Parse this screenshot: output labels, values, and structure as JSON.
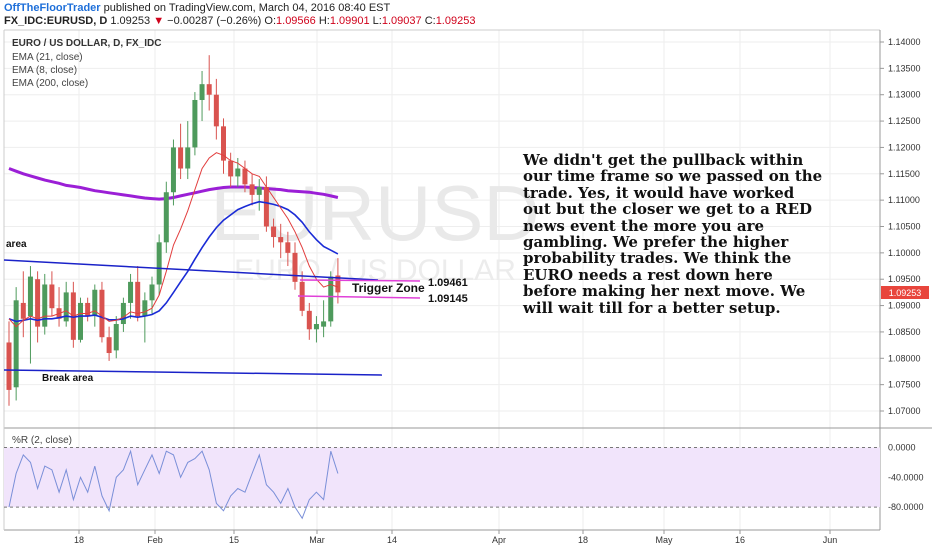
{
  "header": {
    "author": "OffTheFloorTrader",
    "published": "published on TradingView.com, March 04, 2016 08:40 EST",
    "symbol": "FX_IDC:EURUSD, D",
    "last": "1.09253",
    "change_arrow": "▼",
    "change": "−0.00287 (−0.26%)",
    "o_label": "O:",
    "o_val": "1.09566",
    "h_label": "H:",
    "h_val": "1.09901",
    "l_label": "L:",
    "l_val": "1.09037",
    "c_label": "C:",
    "c_val": "1.09253"
  },
  "legend": {
    "title": "EURO / US DOLLAR, D, FX_IDC",
    "ema21": "EMA (21, close)",
    "ema8": "EMA (8, close)",
    "ema200": "EMA (200, close)",
    "wr": "%R (2, close)"
  },
  "watermark": {
    "symbol": "EURUSD",
    "desc": "EURO / US DOLLAR"
  },
  "annotations": {
    "area": "area",
    "break_area": "Break area",
    "trigger_zone": "Trigger Zone",
    "level_high": "1.09461",
    "level_low": "1.09145"
  },
  "note": "We didn't get the pullback within our time frame so we passed on the trade. Yes, it would have worked out but the closer we get to a RED news event the more you are gambling. We prefer the higher probability trades. We think the EURO needs a rest down here before making her next move. We will wait till for a better setup.",
  "colors": {
    "up": "#4e9a5c",
    "down": "#d9534f",
    "ema21": "#1a2bd6",
    "ema8": "#e23d3d",
    "ema200": "#9b1fd6",
    "trendline": "#1a22c8",
    "trigger": "#e040d8",
    "wr": "#7a8fd8",
    "wr_band": "#f1e4fb",
    "last_tag": "#e8453c"
  },
  "chart_data": {
    "type": "candlestick",
    "price_axis": {
      "ticks": [
        "1.14000",
        "1.13500",
        "1.13000",
        "1.12500",
        "1.12000",
        "1.11500",
        "1.11000",
        "1.10500",
        "1.10000",
        "1.09500",
        "1.09000",
        "1.08500",
        "1.08000",
        "1.07500",
        "1.07000"
      ],
      "ylim": [
        1.0665,
        1.141
      ],
      "last_price": "1.09253"
    },
    "time_axis": {
      "ticks": [
        "18",
        "Feb",
        "15",
        "Mar",
        "14",
        "Apr",
        "18",
        "May",
        "16",
        "Jun"
      ]
    },
    "candles": [
      {
        "o": 1.083,
        "h": 1.087,
        "l": 1.071,
        "c": 1.074
      },
      {
        "o": 1.0745,
        "h": 1.0935,
        "l": 1.072,
        "c": 1.091
      },
      {
        "o": 1.0905,
        "h": 1.0965,
        "l": 1.084,
        "c": 1.0875
      },
      {
        "o": 1.088,
        "h": 1.0975,
        "l": 1.079,
        "c": 1.0955
      },
      {
        "o": 1.095,
        "h": 1.0965,
        "l": 1.083,
        "c": 1.086
      },
      {
        "o": 1.086,
        "h": 1.096,
        "l": 1.0845,
        "c": 1.094
      },
      {
        "o": 1.094,
        "h": 1.0965,
        "l": 1.088,
        "c": 1.0895
      },
      {
        "o": 1.0895,
        "h": 1.0935,
        "l": 1.086,
        "c": 1.0875
      },
      {
        "o": 1.087,
        "h": 1.0945,
        "l": 1.086,
        "c": 1.0925
      },
      {
        "o": 1.0925,
        "h": 1.0945,
        "l": 1.082,
        "c": 1.0835
      },
      {
        "o": 1.0835,
        "h": 1.0915,
        "l": 1.083,
        "c": 1.0905
      },
      {
        "o": 1.0905,
        "h": 1.0915,
        "l": 1.087,
        "c": 1.088
      },
      {
        "o": 1.088,
        "h": 1.094,
        "l": 1.086,
        "c": 1.093
      },
      {
        "o": 1.093,
        "h": 1.0945,
        "l": 1.083,
        "c": 1.084
      },
      {
        "o": 1.084,
        "h": 1.086,
        "l": 1.0795,
        "c": 1.081
      },
      {
        "o": 1.0815,
        "h": 1.088,
        "l": 1.08,
        "c": 1.0865
      },
      {
        "o": 1.0865,
        "h": 1.0915,
        "l": 1.085,
        "c": 1.0905
      },
      {
        "o": 1.0905,
        "h": 1.096,
        "l": 1.0875,
        "c": 1.0945
      },
      {
        "o": 1.0945,
        "h": 1.0975,
        "l": 1.087,
        "c": 1.088
      },
      {
        "o": 1.088,
        "h": 1.0925,
        "l": 1.083,
        "c": 1.091
      },
      {
        "o": 1.091,
        "h": 1.0955,
        "l": 1.0885,
        "c": 1.094
      },
      {
        "o": 1.094,
        "h": 1.1035,
        "l": 1.092,
        "c": 1.102
      },
      {
        "o": 1.102,
        "h": 1.1135,
        "l": 1.1,
        "c": 1.1115
      },
      {
        "o": 1.1115,
        "h": 1.1215,
        "l": 1.109,
        "c": 1.12
      },
      {
        "o": 1.12,
        "h": 1.1245,
        "l": 1.114,
        "c": 1.116
      },
      {
        "o": 1.116,
        "h": 1.125,
        "l": 1.114,
        "c": 1.12
      },
      {
        "o": 1.12,
        "h": 1.1305,
        "l": 1.1185,
        "c": 1.129
      },
      {
        "o": 1.129,
        "h": 1.1345,
        "l": 1.125,
        "c": 1.132
      },
      {
        "o": 1.132,
        "h": 1.1375,
        "l": 1.127,
        "c": 1.13
      },
      {
        "o": 1.13,
        "h": 1.133,
        "l": 1.1215,
        "c": 1.124
      },
      {
        "o": 1.124,
        "h": 1.1255,
        "l": 1.115,
        "c": 1.1175
      },
      {
        "o": 1.1175,
        "h": 1.119,
        "l": 1.1125,
        "c": 1.1145
      },
      {
        "o": 1.1145,
        "h": 1.118,
        "l": 1.1125,
        "c": 1.116
      },
      {
        "o": 1.116,
        "h": 1.1175,
        "l": 1.1115,
        "c": 1.113
      },
      {
        "o": 1.113,
        "h": 1.115,
        "l": 1.109,
        "c": 1.111
      },
      {
        "o": 1.111,
        "h": 1.114,
        "l": 1.108,
        "c": 1.1125
      },
      {
        "o": 1.1125,
        "h": 1.1145,
        "l": 1.104,
        "c": 1.105
      },
      {
        "o": 1.105,
        "h": 1.1065,
        "l": 1.101,
        "c": 1.103
      },
      {
        "o": 1.103,
        "h": 1.1055,
        "l": 1.099,
        "c": 1.102
      },
      {
        "o": 1.102,
        "h": 1.104,
        "l": 1.0975,
        "c": 1.1
      },
      {
        "o": 1.1,
        "h": 1.102,
        "l": 1.093,
        "c": 1.0945
      },
      {
        "o": 1.0945,
        "h": 1.0965,
        "l": 1.088,
        "c": 1.089
      },
      {
        "o": 1.089,
        "h": 1.0905,
        "l": 1.0835,
        "c": 1.0855
      },
      {
        "o": 1.0855,
        "h": 1.088,
        "l": 1.083,
        "c": 1.0865
      },
      {
        "o": 1.086,
        "h": 1.091,
        "l": 1.084,
        "c": 1.087
      },
      {
        "o": 1.087,
        "h": 1.0965,
        "l": 1.086,
        "c": 1.0955
      },
      {
        "o": 1.0957,
        "h": 1.099,
        "l": 1.0904,
        "c": 1.0925
      }
    ],
    "ema8": [
      1.0875,
      1.086,
      1.0872,
      1.088,
      1.0875,
      1.088,
      1.088,
      1.0885,
      1.089,
      1.088,
      1.0885,
      1.0885,
      1.089,
      1.088,
      1.087,
      1.0872,
      1.0878,
      1.0888,
      1.0885,
      1.0888,
      1.0895,
      1.092,
      1.0965,
      1.1015,
      1.1045,
      1.108,
      1.112,
      1.116,
      1.118,
      1.119,
      1.1185,
      1.1175,
      1.117,
      1.116,
      1.115,
      1.1145,
      1.1125,
      1.1105,
      1.1085,
      1.1065,
      1.104,
      1.101,
      1.0975,
      1.095,
      1.0935,
      1.094,
      1.0935
    ],
    "ema21": [
      1.0875,
      1.087,
      1.0872,
      1.0875,
      1.0872,
      1.0875,
      1.0875,
      1.0877,
      1.088,
      1.0878,
      1.088,
      1.088,
      1.0882,
      1.0878,
      1.0873,
      1.0873,
      1.0875,
      1.088,
      1.0878,
      1.088,
      1.0883,
      1.089,
      1.0905,
      1.0925,
      1.0945,
      1.0965,
      1.0988,
      1.101,
      1.103,
      1.1048,
      1.1062,
      1.1072,
      1.1082,
      1.1088,
      1.1093,
      1.1097,
      1.1095,
      1.1092,
      1.1088,
      1.1082,
      1.1072,
      1.1058,
      1.104,
      1.1025,
      1.1012,
      1.1005,
      1.0998
    ],
    "ema200": [
      1.116,
      1.1155,
      1.115,
      1.1146,
      1.1142,
      1.1138,
      1.1135,
      1.1132,
      1.1128,
      1.1126,
      1.1124,
      1.1121,
      1.1118,
      1.1116,
      1.1114,
      1.1112,
      1.111,
      1.1108,
      1.1106,
      1.1104,
      1.1103,
      1.1102,
      1.1103,
      1.1105,
      1.1108,
      1.1111,
      1.1114,
      1.1117,
      1.112,
      1.1122,
      1.1124,
      1.1125,
      1.1125,
      1.1125,
      1.1124,
      1.1123,
      1.1122,
      1.1121,
      1.112,
      1.1118,
      1.1117,
      1.1116,
      1.1115,
      1.1113,
      1.1111,
      1.1108,
      1.1105
    ],
    "williams_r": {
      "ticks": [
        "0.0000",
        "-40.0000",
        "-80.0000"
      ],
      "ylim": [
        -100,
        10
      ],
      "values": [
        -80,
        -35,
        -10,
        -20,
        -55,
        -25,
        -30,
        -60,
        -30,
        -70,
        -40,
        -60,
        -25,
        -65,
        -85,
        -40,
        -30,
        -5,
        -50,
        -30,
        -10,
        -35,
        -5,
        -10,
        -40,
        -20,
        -15,
        -5,
        -30,
        -75,
        -85,
        -65,
        -55,
        -60,
        -35,
        -10,
        -50,
        -60,
        -75,
        -55,
        -80,
        -95,
        -70,
        -60,
        -70,
        -5,
        -35
      ]
    }
  }
}
